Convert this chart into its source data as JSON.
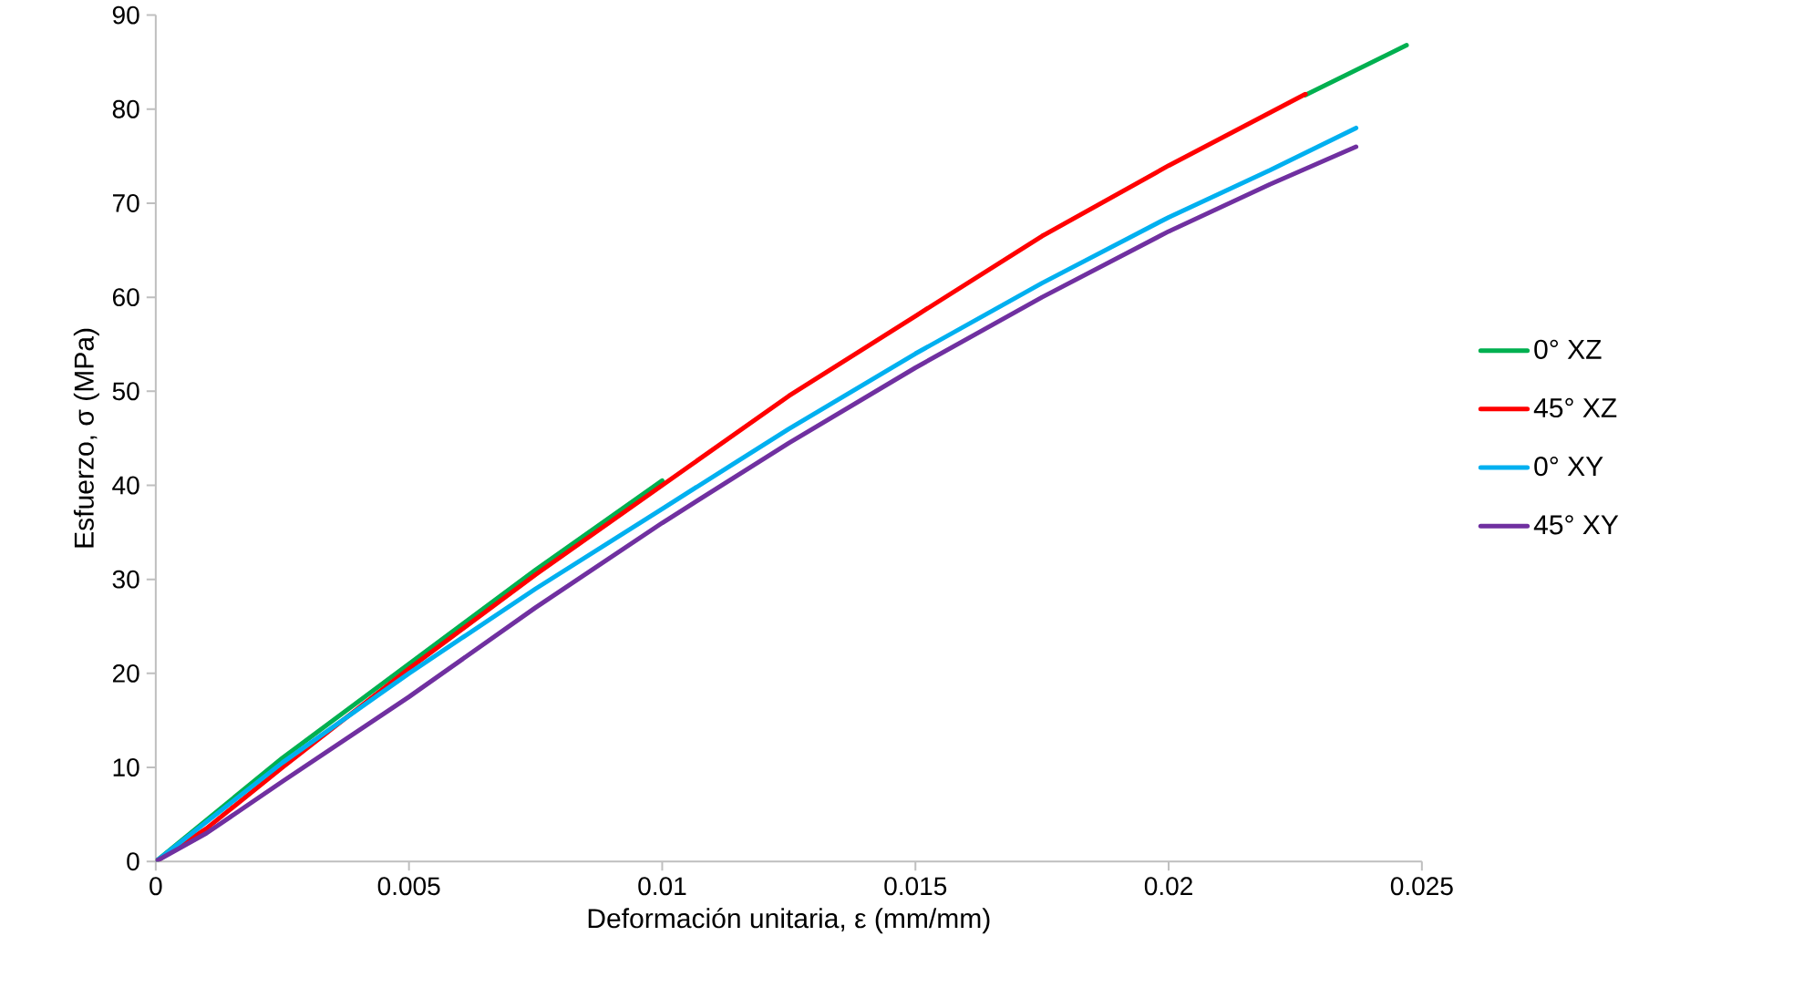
{
  "chart_data": {
    "type": "line",
    "xlabel": "Deformación unitaria, ε (mm/mm)",
    "ylabel": "Esfuerzo, σ (MPa)",
    "xlim": [
      0,
      0.025
    ],
    "ylim": [
      0,
      90
    ],
    "xticks": [
      0,
      0.005,
      0.01,
      0.015,
      0.02,
      0.025
    ],
    "yticks": [
      0,
      10,
      20,
      30,
      40,
      50,
      60,
      70,
      80,
      90
    ],
    "grid": false,
    "legend": "right",
    "marker": "none",
    "line_style": "solid",
    "series": [
      {
        "name": "0° XZ",
        "color": "#00b050",
        "x": [
          0,
          0.0025,
          0.005,
          0.0075,
          0.01,
          0.0125,
          0.015,
          0.0175,
          0.02,
          0.0227,
          0.0247
        ],
        "values": [
          0,
          11,
          21,
          31,
          40.5,
          null,
          null,
          null,
          null,
          81.5,
          86.8
        ]
      },
      {
        "name": "45° XZ",
        "color": "#ff0000",
        "x": [
          0,
          0.001,
          0.0025,
          0.005,
          0.0075,
          0.01,
          0.0125,
          0.015,
          0.0175,
          0.02,
          0.0227
        ],
        "values": [
          0,
          3.5,
          10,
          20.5,
          30.5,
          40,
          49.5,
          58,
          66.5,
          74,
          81.6
        ]
      },
      {
        "name": "0° XY",
        "color": "#00b0f0",
        "x": [
          0,
          0.0025,
          0.005,
          0.0075,
          0.01,
          0.0125,
          0.015,
          0.0175,
          0.02,
          0.022,
          0.0237
        ],
        "values": [
          0,
          10.5,
          20,
          29,
          37.5,
          46,
          54,
          61.5,
          68.5,
          73.5,
          78
        ]
      },
      {
        "name": "45° XY",
        "color": "#7030a0",
        "x": [
          0,
          0.001,
          0.0025,
          0.005,
          0.0075,
          0.01,
          0.0125,
          0.015,
          0.0175,
          0.02,
          0.022,
          0.0237
        ],
        "values": [
          0,
          3,
          8.5,
          17.5,
          27,
          36,
          44.5,
          52.5,
          60,
          67,
          72,
          76
        ]
      }
    ]
  }
}
